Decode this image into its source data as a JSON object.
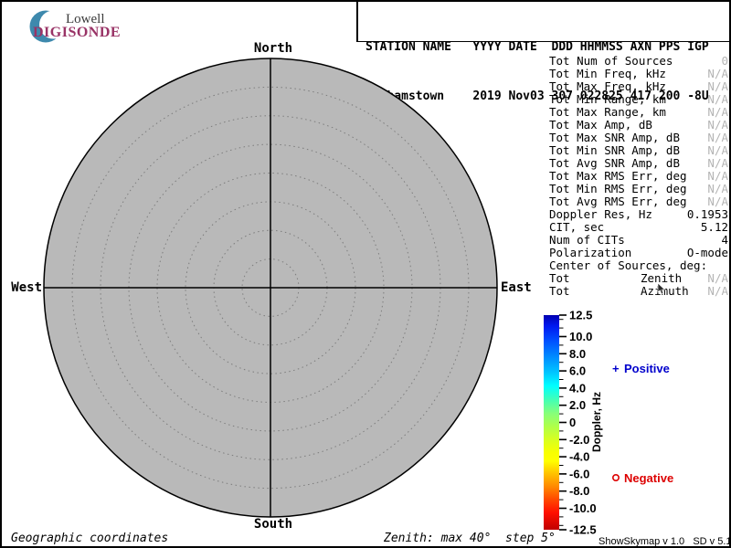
{
  "header": {
    "logo": {
      "line1": "Lowell",
      "line2": "DIGISONDE",
      "arc_color": "#3e89ad",
      "digisonde_color": "#993366"
    },
    "station_line1": "STATION NAME   YYYY DATE  DDD HHMMSS AXN PPS IGP",
    "station_line2": "Grahamstown    2019 Nov03 307 022825 417 200 -8U"
  },
  "skymap": {
    "north": "North",
    "south": "South",
    "east": "East",
    "west": "West",
    "fill": "#b9b9b9",
    "rings": 8,
    "max_zenith_deg": 40,
    "step_deg": 5
  },
  "parameters": {
    "rows": [
      {
        "label": "Tot Num of Sources",
        "value": "0",
        "dim": true
      },
      {
        "label": "Tot Min Freq, kHz",
        "value": "N/A",
        "dim": true
      },
      {
        "label": "Tot Max Freq, kHz",
        "value": "N/A",
        "dim": true
      },
      {
        "label": "Tot Min Range, km",
        "value": "N/A",
        "dim": true
      },
      {
        "label": "Tot Max Range, km",
        "value": "N/A",
        "dim": true
      },
      {
        "label": "Tot Max Amp, dB",
        "value": "N/A",
        "dim": true
      },
      {
        "label": "Tot Max SNR Amp, dB",
        "value": "N/A",
        "dim": true
      },
      {
        "label": "Tot Min SNR Amp, dB",
        "value": "N/A",
        "dim": true
      },
      {
        "label": "Tot Avg SNR Amp, dB",
        "value": "N/A",
        "dim": true
      },
      {
        "label": "Tot Max RMS Err, deg",
        "value": "N/A",
        "dim": true
      },
      {
        "label": "Tot Min RMS Err, deg",
        "value": "N/A",
        "dim": true
      },
      {
        "label": "Tot Avg RMS Err, deg",
        "value": "N/A",
        "dim": true
      },
      {
        "label": "Doppler Res, Hz",
        "value": "0.1953",
        "dim": false
      },
      {
        "label": "CIT, sec",
        "value": "5.12",
        "dim": false
      },
      {
        "label": "Num of CITs",
        "value": "4",
        "dim": false
      },
      {
        "label": "Polarization",
        "value": "O-mode",
        "dim": false
      },
      {
        "label": "Center of Sources, deg:",
        "value": "",
        "dim": false
      },
      {
        "label": "Tot",
        "mid": "Zenith",
        "value": "N/A",
        "dim": true
      },
      {
        "label": "Tot",
        "mid": "Azimuth",
        "value": "N/A",
        "dim": true
      }
    ]
  },
  "colorbar": {
    "title": "Doppler, Hz",
    "max": 12.5,
    "min": -12.5,
    "major_ticks": [
      12.5,
      10,
      8,
      6,
      4,
      2,
      0,
      -2,
      -4,
      -6,
      -8,
      -10,
      -12.5
    ],
    "major_labels": [
      "12.5",
      "10.0",
      "8.0",
      "6.0",
      "4.0",
      "2.0",
      "0",
      "-2.0",
      "-4.0",
      "-6.0",
      "-8.0",
      "-10.0",
      "-12.5"
    ],
    "minor_ticks": [
      12,
      11,
      9,
      7,
      5,
      3,
      1,
      -1,
      -3,
      -5,
      -7,
      -9,
      -11,
      -12
    ],
    "gradient": [
      [
        0.0,
        "#0000b0"
      ],
      [
        0.05,
        "#0018f0"
      ],
      [
        0.12,
        "#0050ff"
      ],
      [
        0.2,
        "#0090ff"
      ],
      [
        0.27,
        "#00c8ff"
      ],
      [
        0.33,
        "#00ffff"
      ],
      [
        0.4,
        "#48ffb0"
      ],
      [
        0.46,
        "#88ff78"
      ],
      [
        0.52,
        "#b0ff48"
      ],
      [
        0.58,
        "#d8ff20"
      ],
      [
        0.64,
        "#f8ff00"
      ],
      [
        0.68,
        "#ffff00"
      ],
      [
        0.74,
        "#ffc000"
      ],
      [
        0.8,
        "#ff8800"
      ],
      [
        0.86,
        "#ff4800"
      ],
      [
        0.92,
        "#ff0f00"
      ],
      [
        1.0,
        "#c00000"
      ]
    ],
    "positive": {
      "marker": "+",
      "label": "Positive",
      "color": "#0000cc"
    },
    "negative": {
      "label": "Negative",
      "color": "#dd0000"
    }
  },
  "footer": {
    "left": "Geographic coordinates",
    "center": "Zenith: max 40°  step 5°",
    "right": "ShowSkymap v 1.0   SD v 5.1"
  }
}
